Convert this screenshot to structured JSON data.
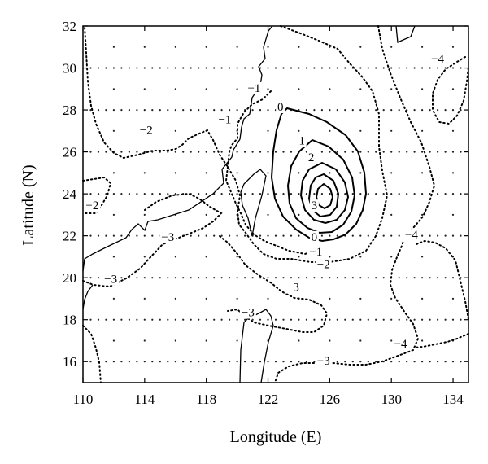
{
  "chart_data": {
    "type": "contour",
    "xlabel": "Longitude (E)",
    "ylabel": "Latitude (N)",
    "xlim": [
      110,
      135
    ],
    "ylim": [
      15,
      32
    ],
    "x_ticks": [
      110,
      114,
      118,
      122,
      126,
      130,
      134
    ],
    "y_ticks": [
      16,
      18,
      20,
      22,
      24,
      26,
      28,
      30,
      32
    ],
    "x_tick_labels": [
      "110",
      "114",
      "118",
      "122",
      "126",
      "130",
      "134"
    ],
    "y_tick_labels": [
      "16",
      "18",
      "20",
      "22",
      "24",
      "26",
      "28",
      "30",
      "32"
    ],
    "grid": "dotted",
    "positive_contour_style": "solid",
    "negative_contour_style": "dotted",
    "contour_labels": [
      {
        "text": "0",
        "lon": 122.8,
        "lat": 28.0
      },
      {
        "text": "1",
        "lon": 124.2,
        "lat": 26.4
      },
      {
        "text": "2",
        "lon": 124.8,
        "lat": 25.6
      },
      {
        "text": "3",
        "lon": 125.0,
        "lat": 23.3
      },
      {
        "text": "0",
        "lon": 125.0,
        "lat": 21.8
      },
      {
        "text": "−1",
        "lon": 125.1,
        "lat": 21.1
      },
      {
        "text": "−2",
        "lon": 125.6,
        "lat": 20.5
      },
      {
        "text": "−1",
        "lon": 119.2,
        "lat": 27.4
      },
      {
        "text": "−1",
        "lon": 121.1,
        "lat": 28.9
      },
      {
        "text": "−2",
        "lon": 114.1,
        "lat": 26.9
      },
      {
        "text": "−2",
        "lon": 110.6,
        "lat": 23.3
      },
      {
        "text": "−3",
        "lon": 115.5,
        "lat": 21.8
      },
      {
        "text": "−3",
        "lon": 111.8,
        "lat": 19.8
      },
      {
        "text": "−3",
        "lon": 123.6,
        "lat": 19.4
      },
      {
        "text": "−3",
        "lon": 120.7,
        "lat": 18.2
      },
      {
        "text": "−3",
        "lon": 125.6,
        "lat": 15.9
      },
      {
        "text": "−4",
        "lon": 131.3,
        "lat": 21.9
      },
      {
        "text": "−4",
        "lon": 133.0,
        "lat": 30.3
      },
      {
        "text": "−4",
        "lon": 130.6,
        "lat": 16.7
      }
    ],
    "coastline_color": "#000000",
    "contour_color": "#000000"
  }
}
